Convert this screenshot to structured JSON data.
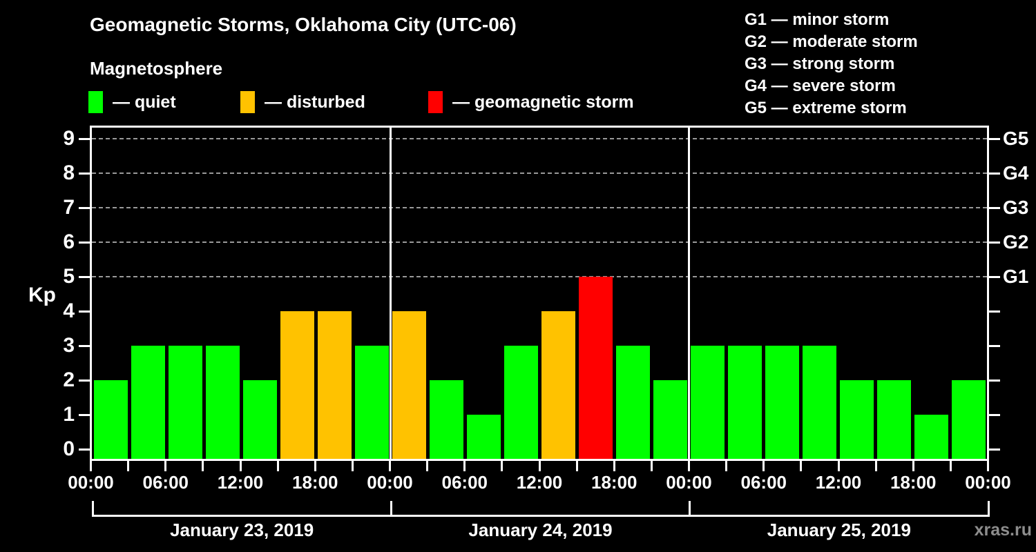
{
  "title": "Geomagnetic Storms, Oklahoma City (UTC-06)",
  "subtitle": "Magnetosphere",
  "legend": {
    "items": [
      {
        "key": "quiet",
        "label": "— quiet",
        "color": "#00ff00"
      },
      {
        "key": "disturbed",
        "label": "— disturbed",
        "color": "#ffc200"
      },
      {
        "key": "storm",
        "label": "— geomagnetic storm",
        "color": "#ff0000"
      }
    ]
  },
  "storm_scale_legend": [
    "G1 — minor storm",
    "G2 — moderate storm",
    "G3 — strong storm",
    "G4 — severe storm",
    "G5 — extreme storm"
  ],
  "watermark": "xras.ru",
  "chart_data": {
    "type": "bar",
    "ylabel": "Kp",
    "ylim": [
      0,
      9
    ],
    "yticks": [
      0,
      1,
      2,
      3,
      4,
      5,
      6,
      7,
      8,
      9
    ],
    "grid_kp_levels": [
      5,
      6,
      7,
      8,
      9
    ],
    "right_axis_labels": [
      {
        "kp": 5,
        "label": "G1"
      },
      {
        "kp": 6,
        "label": "G2"
      },
      {
        "kp": 7,
        "label": "G3"
      },
      {
        "kp": 8,
        "label": "G4"
      },
      {
        "kp": 9,
        "label": "G5"
      }
    ],
    "bar_hours": 3,
    "time_tick_labels": [
      "00:00",
      "06:00",
      "12:00",
      "18:00",
      "00:00",
      "06:00",
      "12:00",
      "18:00",
      "00:00",
      "06:00",
      "12:00",
      "18:00",
      "00:00"
    ],
    "colors": {
      "quiet": "#00ff00",
      "disturbed": "#ffc200",
      "storm": "#ff0000"
    },
    "days": [
      {
        "date": "January 23, 2019",
        "bars": [
          {
            "kp": 2,
            "state": "quiet"
          },
          {
            "kp": 3,
            "state": "quiet"
          },
          {
            "kp": 3,
            "state": "quiet"
          },
          {
            "kp": 3,
            "state": "quiet"
          },
          {
            "kp": 2,
            "state": "quiet"
          },
          {
            "kp": 4,
            "state": "disturbed"
          },
          {
            "kp": 4,
            "state": "disturbed"
          },
          {
            "kp": 3,
            "state": "quiet"
          }
        ]
      },
      {
        "date": "January 24, 2019",
        "bars": [
          {
            "kp": 4,
            "state": "disturbed"
          },
          {
            "kp": 2,
            "state": "quiet"
          },
          {
            "kp": 1,
            "state": "quiet"
          },
          {
            "kp": 3,
            "state": "quiet"
          },
          {
            "kp": 4,
            "state": "disturbed"
          },
          {
            "kp": 5,
            "state": "storm"
          },
          {
            "kp": 3,
            "state": "quiet"
          },
          {
            "kp": 2,
            "state": "quiet"
          }
        ]
      },
      {
        "date": "January 25, 2019",
        "bars": [
          {
            "kp": 3,
            "state": "quiet"
          },
          {
            "kp": 3,
            "state": "quiet"
          },
          {
            "kp": 3,
            "state": "quiet"
          },
          {
            "kp": 3,
            "state": "quiet"
          },
          {
            "kp": 2,
            "state": "quiet"
          },
          {
            "kp": 2,
            "state": "quiet"
          },
          {
            "kp": 1,
            "state": "quiet"
          },
          {
            "kp": 2,
            "state": "quiet"
          }
        ]
      }
    ]
  }
}
